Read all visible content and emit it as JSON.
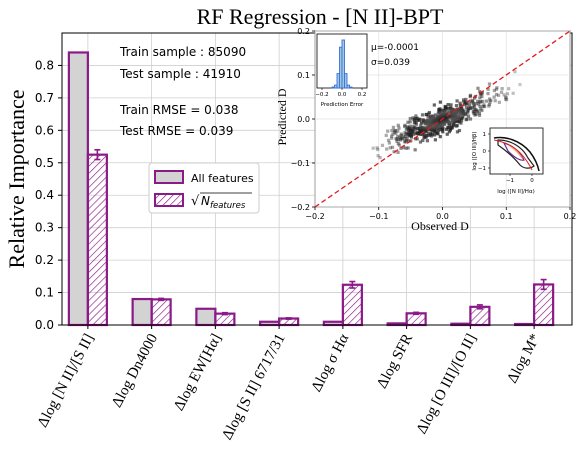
{
  "chart_data": [
    {
      "type": "bar",
      "title": "RF Regression - [N II]-BPT",
      "xlabel": "",
      "ylabel": "Relative Importance",
      "ylim": [
        0,
        0.9
      ],
      "yticks": [
        "0.0",
        "0.1",
        "0.2",
        "0.3",
        "0.4",
        "0.5",
        "0.6",
        "0.7",
        "0.8"
      ],
      "grid": true,
      "categories": [
        "Δlog [N II]/[S II]",
        "Δlog Dn4000",
        "Δlog EW[Hα]",
        "Δlog [S II] 6717/31",
        "Δlog σ Hα",
        "Δlog SFR",
        "Δlog [O III]/[O II]",
        "Δlog M*"
      ],
      "series": [
        {
          "name": "All features",
          "values": [
            0.84,
            0.08,
            0.05,
            0.01,
            0.01,
            0.005,
            0.004,
            0.003
          ],
          "errors": [
            0,
            0,
            0,
            0,
            0,
            0,
            0,
            0
          ],
          "fill": "#d3d3d3",
          "edge": "#8b1a89",
          "hatch": false
        },
        {
          "name": "√N_features",
          "values": [
            0.525,
            0.079,
            0.035,
            0.02,
            0.124,
            0.036,
            0.056,
            0.125
          ],
          "errors": [
            0.015,
            0.003,
            0.003,
            0.002,
            0.01,
            0.003,
            0.006,
            0.015
          ],
          "fill": "#ffffff",
          "edge": "#8b1a89",
          "hatch": true
        }
      ],
      "legend": {
        "position": "center-left",
        "items": [
          "All features",
          "√N_features"
        ]
      },
      "annotations": {
        "train_sample": "Train sample : 85090",
        "test_sample": "Test sample : 41910",
        "train_rmse": "Train RMSE = 0.038",
        "test_rmse": "Test RMSE = 0.039"
      },
      "colors": {
        "bar_edge": "#8b1a89",
        "bar_fill": "#d3d3d3",
        "error": "#8b1a89"
      }
    },
    {
      "type": "heatmap",
      "title": "",
      "xlabel": "Observed D",
      "ylabel": "Predicted D",
      "xlim": [
        -0.2,
        0.2
      ],
      "ylim": [
        -0.2,
        0.2
      ],
      "xticks": [
        "−0.2",
        "−0.1",
        "0.0",
        "0.1",
        "0.2"
      ],
      "yticks": [
        "−0.2",
        "−0.1",
        "0.0",
        "0.1",
        "0.2"
      ],
      "one_to_one_line": true,
      "line_color": "#e41a1c",
      "stats": {
        "mu": "μ=-0.0001",
        "sigma": "σ=0.039"
      }
    },
    {
      "type": "bar",
      "title": "",
      "xlabel": "Prediction Error",
      "xticks": [
        "−0.2",
        "0.0",
        "0.2"
      ],
      "bins": [
        -0.1,
        -0.075,
        -0.05,
        -0.025,
        0.0,
        0.025,
        0.05,
        0.075
      ],
      "values": [
        0.02,
        0.06,
        0.3,
        0.85,
        1.0,
        0.3,
        0.06,
        0.02
      ],
      "fill": "#9ecae1",
      "edge": "#3a6fd8"
    },
    {
      "type": "line",
      "title": "",
      "xlabel": "log ([N II]/Hα)",
      "ylabel": "log ([O III]/Hβ)",
      "xticks": [
        "−1",
        "0"
      ],
      "yticks": [
        "−1",
        "0",
        "1"
      ]
    }
  ]
}
